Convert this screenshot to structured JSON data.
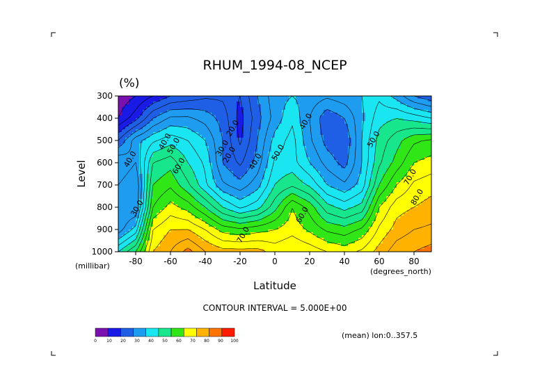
{
  "chart_data": {
    "type": "heatmap",
    "title": "RHUM_1994-08_NCEP",
    "unit_label": "(%)",
    "xlabel": "Latitude",
    "ylabel": "Level",
    "x_unit": "(degrees_north)",
    "y_unit": "(millibar)",
    "xlim": [
      -90,
      90
    ],
    "ylim": [
      1000,
      300
    ],
    "x_ticks": [
      "-80",
      "-60",
      "-40",
      "-20",
      "0",
      "20",
      "40",
      "60",
      "80"
    ],
    "y_ticks": [
      "300",
      "400",
      "500",
      "600",
      "700",
      "800",
      "900",
      "1000"
    ],
    "contour_interval_text": "CONTOUR INTERVAL = 5.000E+00",
    "mean_text": "(mean) lon:0..357.5",
    "contour_labels": [
      {
        "text": "40.0",
        "lat": -82,
        "lev": 590
      },
      {
        "text": "40.0",
        "lat": -62,
        "lev": 510
      },
      {
        "text": "50.0",
        "lat": -57,
        "lev": 530
      },
      {
        "text": "60.0",
        "lat": -54,
        "lev": 620
      },
      {
        "text": "30.0",
        "lat": -78,
        "lev": 810
      },
      {
        "text": "20.0",
        "lat": -23,
        "lev": 450
      },
      {
        "text": "30.0",
        "lat": -29,
        "lev": 540
      },
      {
        "text": "20.0",
        "lat": -25,
        "lev": 570
      },
      {
        "text": "40.0",
        "lat": -10,
        "lev": 600
      },
      {
        "text": "50.0",
        "lat": 3,
        "lev": 560
      },
      {
        "text": "40.0",
        "lat": 19,
        "lev": 420
      },
      {
        "text": "50.0",
        "lat": 58,
        "lev": 500
      },
      {
        "text": "60.0",
        "lat": 17,
        "lev": 840
      },
      {
        "text": "70.0",
        "lat": -17,
        "lev": 930
      },
      {
        "text": "70.0",
        "lat": 79,
        "lev": 670
      },
      {
        "text": "80.0",
        "lat": 83,
        "lev": 760
      }
    ],
    "colorbar": {
      "levels": [
        "0",
        "10",
        "20",
        "30",
        "40",
        "50",
        "60",
        "70",
        "80",
        "90",
        "100"
      ],
      "colors": [
        "#7a10b0",
        "#1a1ae6",
        "#1f5fe6",
        "#1e9cf0",
        "#19e6f0",
        "#17e68c",
        "#30e617",
        "#ffff00",
        "#ffb300",
        "#ff7300",
        "#ff1a00"
      ]
    },
    "lats": [
      -90,
      -80,
      -70,
      -60,
      -50,
      -40,
      -30,
      -20,
      -10,
      0,
      10,
      20,
      30,
      40,
      50,
      60,
      70,
      80,
      90
    ],
    "levels": [
      1000,
      900,
      800,
      700,
      600,
      500,
      400,
      300
    ],
    "grid": [
      [
        50,
        60,
        80,
        85,
        92,
        85,
        82,
        82,
        82,
        78,
        80,
        78,
        75,
        73,
        76,
        82,
        88,
        90,
        92
      ],
      [
        32,
        42,
        75,
        80,
        80,
        75,
        68,
        66,
        68,
        70,
        73,
        69,
        64,
        62,
        66,
        76,
        82,
        85,
        86
      ],
      [
        30,
        30,
        65,
        72,
        68,
        60,
        50,
        44,
        48,
        58,
        70,
        63,
        52,
        48,
        52,
        70,
        78,
        80,
        82
      ],
      [
        35,
        30,
        60,
        64,
        56,
        46,
        36,
        32,
        38,
        50,
        54,
        49,
        40,
        36,
        42,
        60,
        70,
        76,
        78
      ],
      [
        40,
        35,
        55,
        58,
        50,
        44,
        30,
        24,
        32,
        46,
        47,
        40,
        33,
        28,
        40,
        54,
        62,
        70,
        72
      ],
      [
        25,
        38,
        44,
        48,
        45,
        40,
        30,
        19,
        30,
        42,
        47,
        36,
        28,
        25,
        40,
        52,
        58,
        64,
        66
      ],
      [
        10,
        18,
        30,
        36,
        36,
        33,
        28,
        18,
        28,
        37,
        44,
        35,
        26,
        30,
        39,
        48,
        50,
        48,
        45
      ],
      [
        6,
        10,
        15,
        20,
        22,
        24,
        24,
        20,
        30,
        38,
        40,
        38,
        36,
        38,
        40,
        44,
        38,
        30,
        26
      ]
    ]
  }
}
